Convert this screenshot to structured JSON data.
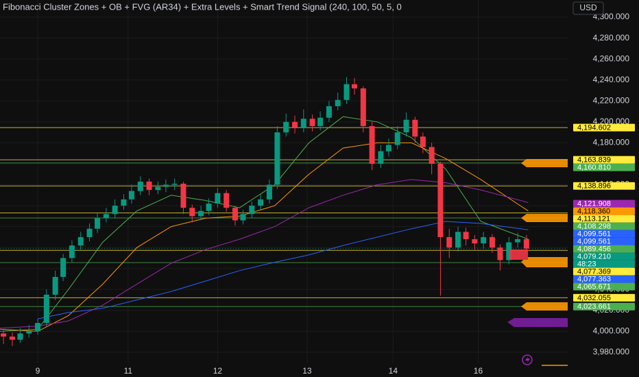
{
  "chart_data": {
    "type": "candlestick",
    "title": "Fibonacci Cluster Zones + OB + FVG (AR34) + Extra Levels + Smart Trend Signal (240, 100, 50, 5, 0",
    "currency": "USD",
    "countdown": "48:23",
    "up_color": "#089981",
    "down_color": "#f23645",
    "grid": true,
    "xlim": [
      -0.43,
      6.04
    ],
    "ylim": [
      3969.5,
      4316.4
    ],
    "xticks": [
      {
        "value": 0,
        "label": "9"
      },
      {
        "value": 1.03,
        "label": "11"
      },
      {
        "value": 2.05,
        "label": "12"
      },
      {
        "value": 3.07,
        "label": "13"
      },
      {
        "value": 4.05,
        "label": "14"
      },
      {
        "value": 5.02,
        "label": "16"
      }
    ],
    "yticks": [
      {
        "value": 3980,
        "label": "3,980.000"
      },
      {
        "value": 4000,
        "label": "4,000.000"
      },
      {
        "value": 4020,
        "label": "4,020.000"
      },
      {
        "value": 4040,
        "label": "4,040.000"
      },
      {
        "value": 4060,
        "label": "4,060.000"
      },
      {
        "value": 4080,
        "label": "4,080.000"
      },
      {
        "value": 4100,
        "label": "4,100.000"
      },
      {
        "value": 4120,
        "label": "4,120.000"
      },
      {
        "value": 4140,
        "label": "4,140.000"
      },
      {
        "value": 4160,
        "label": "4,160.000"
      },
      {
        "value": 4180,
        "label": "4,180.000"
      },
      {
        "value": 4200,
        "label": "4,200.000"
      },
      {
        "value": 4220,
        "label": "4,220.000"
      },
      {
        "value": 4240,
        "label": "4,240.000"
      },
      {
        "value": 4260,
        "label": "4,260.000"
      },
      {
        "value": 4280,
        "label": "4,280.000"
      },
      {
        "value": 4300,
        "label": "4,300.000"
      }
    ],
    "x": [
      -0.39,
      -0.29,
      -0.2,
      -0.1,
      0,
      0.1,
      0.2,
      0.29,
      0.39,
      0.49,
      0.59,
      0.68,
      0.78,
      0.88,
      0.98,
      1.07,
      1.17,
      1.27,
      1.37,
      1.46,
      1.56,
      1.66,
      1.76,
      1.86,
      1.95,
      2.05,
      2.15,
      2.25,
      2.34,
      2.44,
      2.54,
      2.64,
      2.73,
      2.83,
      2.93,
      3.03,
      3.13,
      3.22,
      3.32,
      3.42,
      3.52,
      3.61,
      3.71,
      3.81,
      3.91,
      4.0,
      4.1,
      4.2,
      4.3,
      4.39,
      4.49,
      4.59,
      4.69,
      4.79,
      4.88,
      4.98,
      5.08,
      5.18,
      5.27,
      5.37,
      5.47,
      5.57
    ],
    "open": [
      3998,
      3995,
      3992,
      3998,
      4000,
      4008,
      4035,
      4052,
      4070,
      4082,
      4090,
      4098,
      4108,
      4112,
      4120,
      4126,
      4134,
      4143,
      4135,
      4138,
      4140,
      4141,
      4118,
      4110,
      4115,
      4122,
      4132,
      4118,
      4106,
      4112,
      4120,
      4126,
      4140,
      4190,
      4200,
      4194,
      4203,
      4196,
      4204,
      4215,
      4221,
      4236,
      4232,
      4196,
      4160,
      4172,
      4178,
      4190,
      4202,
      4186,
      4176,
      4160,
      4090,
      4080,
      4095,
      4088,
      4084,
      4090,
      4080,
      4068,
      4085,
      4088
    ],
    "high": [
      4001,
      3999,
      4003,
      4006,
      4012,
      4040,
      4058,
      4074,
      4087,
      4095,
      4103,
      4113,
      4118,
      4126,
      4131,
      4140,
      4148,
      4146,
      4143,
      4145,
      4146,
      4143,
      4121,
      4120,
      4127,
      4137,
      4135,
      4120,
      4116,
      4124,
      4131,
      4145,
      4196,
      4208,
      4206,
      4212,
      4207,
      4210,
      4220,
      4228,
      4243,
      4242,
      4234,
      4200,
      4178,
      4184,
      4196,
      4209,
      4205,
      4190,
      4180,
      4162,
      4098,
      4100,
      4099,
      4092,
      4095,
      4093,
      4083,
      4090,
      4094,
      4092
    ],
    "low": [
      3988,
      3986,
      3989,
      3994,
      3997,
      4005,
      4030,
      4048,
      4066,
      4078,
      4086,
      4094,
      4104,
      4108,
      4116,
      4122,
      4130,
      4130,
      4131,
      4133,
      4135,
      4112,
      4104,
      4106,
      4111,
      4118,
      4114,
      4101,
      4102,
      4108,
      4116,
      4122,
      4136,
      4186,
      4189,
      4190,
      4191,
      4192,
      4200,
      4211,
      4217,
      4226,
      4190,
      4154,
      4156,
      4167,
      4174,
      4186,
      4180,
      4170,
      4150,
      4034,
      4070,
      4076,
      4082,
      4078,
      4079,
      4075,
      4058,
      4064,
      4080,
      4075
    ],
    "close": [
      3995,
      3992,
      3998,
      4000,
      4008,
      4035,
      4052,
      4070,
      4082,
      4090,
      4098,
      4108,
      4112,
      4120,
      4126,
      4134,
      4143,
      4135,
      4138,
      4140,
      4141,
      4118,
      4110,
      4115,
      4122,
      4132,
      4118,
      4106,
      4112,
      4120,
      4126,
      4140,
      4190,
      4200,
      4194,
      4203,
      4196,
      4204,
      4215,
      4221,
      4236,
      4232,
      4196,
      4160,
      4172,
      4178,
      4190,
      4202,
      4186,
      4176,
      4160,
      4090,
      4080,
      4095,
      4088,
      4084,
      4090,
      4080,
      4068,
      4085,
      4088,
      4079
    ],
    "overlays": {
      "x": [
        -0.43,
        0,
        0.35,
        0.74,
        1.13,
        1.52,
        1.91,
        2.3,
        2.7,
        3.09,
        3.48,
        3.87,
        4.26,
        4.65,
        5.05,
        5.59
      ],
      "series": [
        {
          "color": "#4caf50",
          "values": [
            4000,
            4002,
            4040,
            4085,
            4115,
            4130,
            4125,
            4118,
            4140,
            4180,
            4205,
            4200,
            4185,
            4155,
            4105,
            4088
          ]
        },
        {
          "color": "#ff9800",
          "values": [
            4002,
            4000,
            4015,
            4045,
            4080,
            4100,
            4108,
            4110,
            4120,
            4150,
            4175,
            4180,
            4180,
            4165,
            4145,
            4115
          ]
        },
        {
          "color": "#9c27b0",
          "values": [
            4003,
            4005,
            4010,
            4025,
            4045,
            4065,
            4078,
            4088,
            4100,
            4118,
            4130,
            4140,
            4145,
            4142,
            4135,
            4123
          ]
        },
        {
          "color": "#2962ff",
          "values": [
            null,
            4012,
            4018,
            4022,
            4030,
            4038,
            4048,
            4058,
            4066,
            4073,
            4082,
            4090,
            4098,
            4105,
            4103,
            4097
          ]
        }
      ]
    },
    "levels": [
      {
        "value": 4194.602,
        "label": "4,194.602",
        "color": "#ffeb3b",
        "line": "solid"
      },
      {
        "value": 4163.839,
        "label": "4,163.839",
        "color": "#ffeb3b",
        "line": "solid"
      },
      {
        "value": 4160.81,
        "label": "4,160.810",
        "color": "#4caf50",
        "line": "solid"
      },
      {
        "value": 4138.896,
        "label": "4,138.896",
        "color": "#ffeb3b",
        "line": "solid"
      },
      {
        "value": 4121.908,
        "label": "4,121.908",
        "color": "#9c27b0",
        "line": "none"
      },
      {
        "value": 4118.36,
        "label": "4,118.360",
        "color": "#ff9800",
        "line": "none"
      },
      {
        "value": 4113.121,
        "label": "4,113.121",
        "color": "#ffeb3b",
        "line": "solid"
      },
      {
        "value": 4108.298,
        "label": "4,108.298",
        "color": "#4caf50",
        "line": "solid"
      },
      {
        "value": 4099.561,
        "label": "4,099.561",
        "color": "#2962ff",
        "line": "none"
      },
      {
        "value": 4099.561,
        "label": "4,099.561",
        "color": "#2962ff",
        "line": "none"
      },
      {
        "value": 4089.456,
        "label": "4,089.456",
        "color": "#4caf50",
        "line": "none"
      },
      {
        "value": 4079.21,
        "label": "4,079.210",
        "color": "#089981",
        "line": "dotted"
      },
      {
        "value": 4077.369,
        "label": "4,077.369",
        "color": "#ffeb3b",
        "line": "solid"
      },
      {
        "value": 4077.363,
        "label": "4,077.363",
        "color": "#2962ff",
        "line": "none"
      },
      {
        "value": 4065.671,
        "label": "4,065.671",
        "color": "#4caf50",
        "line": "solid"
      },
      {
        "value": 4032.055,
        "label": "4,032.055",
        "color": "#ffeb3b",
        "line": "solid"
      },
      {
        "value": 4023.661,
        "label": "4,023.661",
        "color": "#4caf50",
        "line": "solid"
      }
    ]
  }
}
